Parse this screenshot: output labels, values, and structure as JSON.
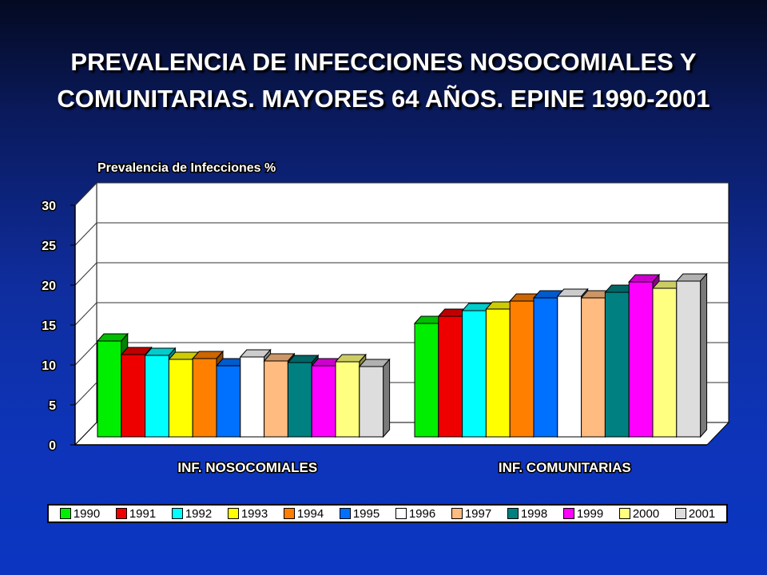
{
  "title": {
    "line1": "PREVALENCIA DE INFECCIONES NOSOCOMIALES Y",
    "line2": "COMUNITARIAS. MAYORES 64 AÑOS. EPINE 1990-2001"
  },
  "chart_data": {
    "type": "bar",
    "style": "3d-clustered",
    "ylabel": "Prevalencia de Infecciones %",
    "xlabel": "",
    "ylim": [
      0,
      30
    ],
    "yticks": [
      "0",
      "5",
      "10",
      "15",
      "20",
      "25",
      "30"
    ],
    "grid": true,
    "legend_position": "bottom",
    "categories": [
      "INF. NOSOCOMIALES",
      "INF. COMUNITARIAS"
    ],
    "series": [
      {
        "name": "1990",
        "color": "#00ee00",
        "values": [
          12.0,
          14.2
        ]
      },
      {
        "name": "1991",
        "color": "#ee0000",
        "values": [
          10.3,
          15.1
        ]
      },
      {
        "name": "1992",
        "color": "#00ffff",
        "values": [
          10.2,
          15.8
        ]
      },
      {
        "name": "1993",
        "color": "#ffff00",
        "values": [
          9.7,
          16.0
        ]
      },
      {
        "name": "1994",
        "color": "#ff8000",
        "values": [
          9.8,
          17.0
        ]
      },
      {
        "name": "1995",
        "color": "#0070ff",
        "values": [
          8.9,
          17.4
        ]
      },
      {
        "name": "1996",
        "color": "#ffffff",
        "values": [
          10.0,
          17.6
        ]
      },
      {
        "name": "1997",
        "color": "#ffbb80",
        "values": [
          9.5,
          17.4
        ]
      },
      {
        "name": "1998",
        "color": "#008080",
        "values": [
          9.3,
          18.1
        ]
      },
      {
        "name": "1999",
        "color": "#ff00ff",
        "values": [
          8.9,
          19.4
        ]
      },
      {
        "name": "2000",
        "color": "#ffff80",
        "values": [
          9.4,
          18.6
        ]
      },
      {
        "name": "2001",
        "color": "#dddddd",
        "values": [
          8.8,
          19.5
        ]
      }
    ]
  }
}
